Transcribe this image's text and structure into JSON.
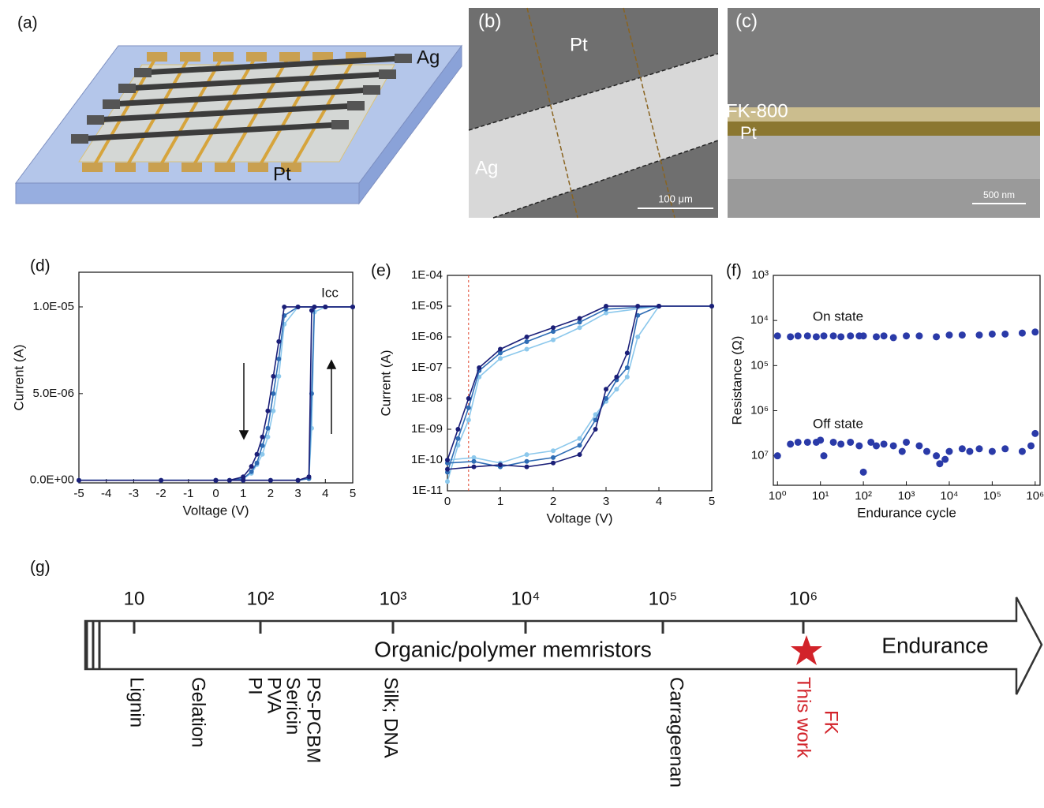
{
  "images": [
    {
      "panel": "(a)",
      "labels": [
        "Ag",
        "Pt"
      ]
    },
    {
      "panel": "(b)",
      "labels": [
        "Pt",
        "Ag"
      ],
      "scale_bar": "100 μm"
    },
    {
      "panel": "(c)",
      "labels": [
        "FK-800",
        "Pt"
      ],
      "scale_bar": "500 nm"
    }
  ],
  "chart_data": [
    {
      "type": "line",
      "panel": "(d)",
      "xlabel": "Voltage (V)",
      "ylabel": "Current (A)",
      "annotations": [
        "Icc"
      ],
      "xlim": [
        -5,
        5
      ],
      "xticks": [
        -5,
        -4,
        -3,
        -2,
        -1,
        0,
        1,
        2,
        3,
        4,
        5
      ],
      "ylim": [
        -1.5e-07,
        1.2e-05
      ],
      "yticks": [
        {
          "value": 0,
          "label": "0.0E+00"
        },
        {
          "value": 5e-06,
          "label": "5.0E-06"
        },
        {
          "value": 1e-05,
          "label": "1.0E-05"
        }
      ],
      "x": [
        0,
        1,
        2,
        3,
        3.4,
        3.5,
        3.6,
        4,
        5,
        4,
        3,
        2.5,
        2.3,
        2.1,
        1.9,
        1.7,
        1.5,
        1.3,
        1,
        0.5,
        0,
        -2,
        -5
      ],
      "series": [
        {
          "color": "#8cc8ec",
          "values": [
            0,
            0,
            0,
            0,
            1e-07,
            3e-06,
            9.7e-06,
            1e-05,
            1e-05,
            1e-05,
            1e-05,
            9e-06,
            6e-06,
            4e-06,
            2.5e-06,
            1.5e-06,
            9e-07,
            4e-07,
            1e-07,
            0,
            0,
            0,
            0
          ]
        },
        {
          "color": "#2f6db5",
          "values": [
            0,
            0,
            0,
            0,
            1e-07,
            5e-06,
            1e-05,
            1e-05,
            1e-05,
            1e-05,
            1e-05,
            9.5e-06,
            7e-06,
            5e-06,
            3e-06,
            2e-06,
            1e-06,
            5e-07,
            1e-07,
            0,
            0,
            0,
            0
          ]
        },
        {
          "color": "#1b1f78",
          "values": [
            0,
            0,
            0,
            0,
            2e-07,
            9.8e-06,
            1e-05,
            1e-05,
            1e-05,
            1e-05,
            1e-05,
            1e-05,
            8e-06,
            6e-06,
            4e-06,
            2.5e-06,
            1.5e-06,
            8e-07,
            2e-07,
            0,
            0,
            0,
            0
          ]
        }
      ]
    },
    {
      "type": "line",
      "panel": "(e)",
      "xlabel": "Voltage (V)",
      "ylabel": "Current (A)",
      "yscale": "log",
      "xlim": [
        0,
        5
      ],
      "xticks": [
        0,
        1,
        2,
        3,
        4,
        5
      ],
      "ylim": [
        1e-11,
        0.0001
      ],
      "yticks": [
        {
          "value": 1e-11,
          "label": "1E-11"
        },
        {
          "value": 1e-10,
          "label": "1E-10"
        },
        {
          "value": 1e-09,
          "label": "1E-09"
        },
        {
          "value": 1e-08,
          "label": "1E-08"
        },
        {
          "value": 1e-07,
          "label": "1E-07"
        },
        {
          "value": 1e-06,
          "label": "1E-06"
        },
        {
          "value": 1e-05,
          "label": "1E-05"
        },
        {
          "value": 0.0001,
          "label": "1E-04"
        }
      ],
      "vline": 0.4,
      "x": [
        0,
        0.5,
        1,
        1.5,
        2,
        2.5,
        2.8,
        3,
        3.2,
        3.4,
        3.6,
        4,
        5,
        4,
        3,
        2.5,
        2,
        1.5,
        1,
        0.6,
        0.4,
        0.2,
        0
      ],
      "series": [
        {
          "color": "#8cc8ec",
          "values": [
            1e-10,
            1.2e-10,
            8e-11,
            1.5e-10,
            2e-10,
            5e-10,
            3e-09,
            8e-09,
            2e-08,
            5e-08,
            1e-06,
            1e-05,
            1e-05,
            1e-05,
            6e-06,
            2e-06,
            8e-07,
            4e-07,
            2e-07,
            5e-08,
            2e-09,
            3e-10,
            2e-11
          ]
        },
        {
          "color": "#2f6db5",
          "values": [
            8e-11,
            9e-11,
            6e-11,
            9e-11,
            1.2e-10,
            3e-10,
            2e-09,
            1e-08,
            4e-08,
            1e-07,
            5e-06,
            1e-05,
            1e-05,
            1e-05,
            8e-06,
            3e-06,
            1.5e-06,
            7e-07,
            3e-07,
            8e-08,
            5e-09,
            5e-10,
            4e-11
          ]
        },
        {
          "color": "#1b1f78",
          "values": [
            5e-11,
            6e-11,
            7e-11,
            6e-11,
            8e-11,
            1.5e-10,
            1e-09,
            2e-08,
            5e-08,
            3e-07,
            1e-05,
            1e-05,
            1e-05,
            1e-05,
            1e-05,
            4e-06,
            2e-06,
            1e-06,
            4e-07,
            1e-07,
            1e-08,
            1e-09,
            1e-10
          ]
        }
      ]
    },
    {
      "type": "scatter",
      "panel": "(f)",
      "xlabel": "Endurance cycle",
      "ylabel": "Resistance (Ω)",
      "annotations": [
        "On state",
        "Off state"
      ],
      "xscale": "log",
      "yscale": "log",
      "xlim": [
        0.8,
        1300000.0
      ],
      "xticks": [
        {
          "value": 1,
          "label": "10⁰"
        },
        {
          "value": 10,
          "label": "10¹"
        },
        {
          "value": 100,
          "label": "10²"
        },
        {
          "value": 1000,
          "label": "10³"
        },
        {
          "value": 10000,
          "label": "10⁴"
        },
        {
          "value": 100000,
          "label": "10⁵"
        },
        {
          "value": 1000000,
          "label": "10⁶"
        }
      ],
      "ylim": [
        45000000.0,
        1000
      ],
      "yticks": [
        {
          "value": 1000,
          "label": "10³"
        },
        {
          "value": 10000,
          "label": "10⁴"
        },
        {
          "value": 100000,
          "label": "10⁵"
        },
        {
          "value": 1000000,
          "label": "10⁶"
        },
        {
          "value": 10000000,
          "label": "10⁷"
        }
      ],
      "series": [
        {
          "color": "#2a3aa8",
          "x": [
            1,
            2,
            3,
            5,
            8,
            12,
            20,
            30,
            50,
            80,
            100,
            200,
            300,
            500,
            1000,
            2000,
            5000,
            10000,
            20000,
            50000,
            100000,
            200000,
            500000,
            1000000
          ],
          "values": [
            22000.0,
            23000.0,
            22000.0,
            22000.0,
            23000.0,
            22000.0,
            22000.0,
            23000.0,
            22000.0,
            22000.0,
            22000.0,
            23000.0,
            22000.0,
            24000.0,
            22000.0,
            22000.0,
            23000.0,
            21000.0,
            21000.0,
            21000.0,
            20000.0,
            20000.0,
            19000.0,
            18000.0
          ]
        },
        {
          "color": "#2a3aa8",
          "x": [
            1,
            2,
            3,
            5,
            8,
            10,
            12,
            20,
            30,
            50,
            80,
            100,
            150,
            200,
            300,
            500,
            800,
            1000,
            2000,
            3000,
            5000,
            6000,
            8000,
            10000,
            20000,
            30000,
            50000,
            100000,
            200000,
            500000,
            800000,
            1000000
          ],
          "values": [
            10000000.0,
            5500000.0,
            5000000.0,
            5000000.0,
            5000000.0,
            4500000.0,
            10000000.0,
            5000000.0,
            5500000.0,
            5000000.0,
            6000000.0,
            23000000.0,
            5000000.0,
            6000000.0,
            5500000.0,
            6000000.0,
            8000000.0,
            5000000.0,
            6000000.0,
            8000000.0,
            10000000.0,
            15000000.0,
            12000000.0,
            8000000.0,
            7000000.0,
            8000000.0,
            7000000.0,
            8000000.0,
            7000000.0,
            8000000.0,
            6000000.0,
            3200000.0
          ]
        }
      ]
    }
  ],
  "timeline": {
    "panel": "(g)",
    "ticks": [
      "10",
      "10²",
      "10³",
      "10⁴",
      "10⁵",
      "10⁶"
    ],
    "band_label": "Organic/polymer memristors",
    "axis_label": "Endurance",
    "materials": [
      "Lignin",
      "Gelation",
      "PI",
      "PVA",
      "Sericin",
      "PS-PCBM",
      "Silk; DNA",
      "Carrageenan"
    ],
    "this_work": [
      "FK",
      "This work"
    ]
  }
}
